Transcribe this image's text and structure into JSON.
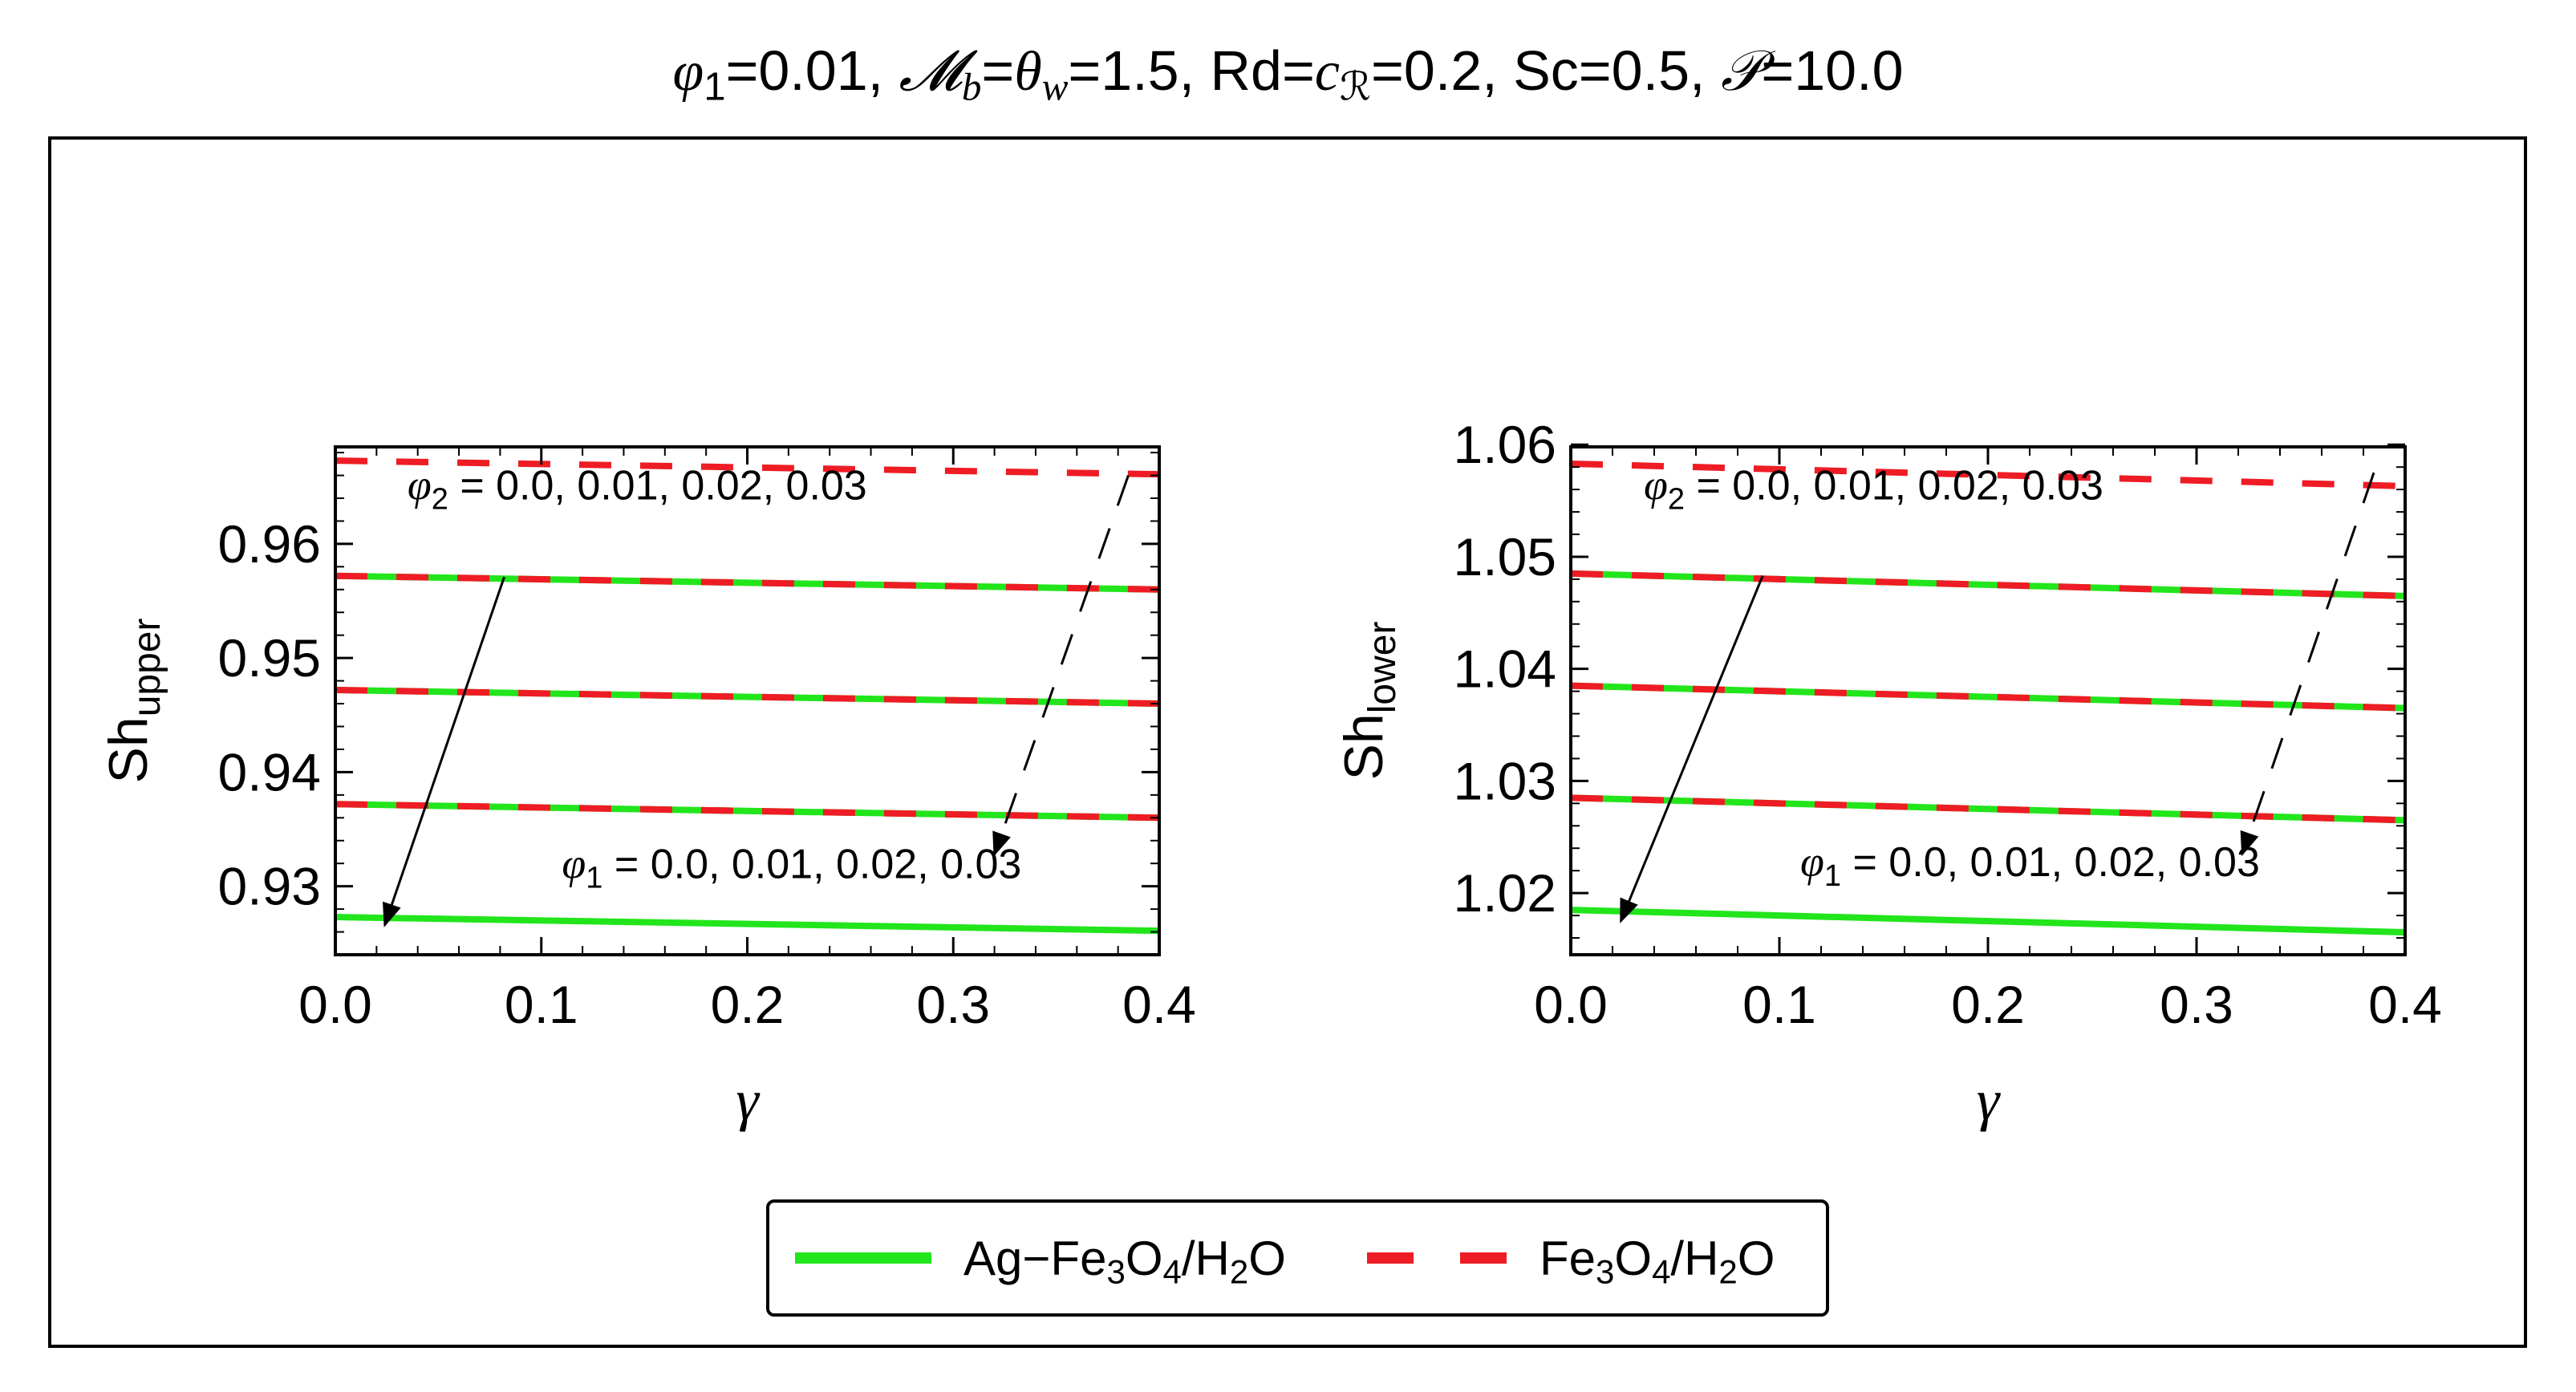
{
  "chart_data": [
    {
      "type": "line",
      "title": "",
      "xlabel": "γ",
      "ylabel_base": "Sh",
      "ylabel_sub": "upper",
      "xlim": [
        0.0,
        0.4
      ],
      "ylim": [
        0.924,
        0.9685
      ],
      "xticks": [
        "0.0",
        "0.1",
        "0.2",
        "0.3",
        "0.4"
      ],
      "xtick_values": [
        0.0,
        0.1,
        0.2,
        0.3,
        0.4
      ],
      "yticks": [
        "0.93",
        "0.94",
        "0.95",
        "0.96"
      ],
      "ytick_values": [
        0.93,
        0.94,
        0.95,
        0.96
      ],
      "grid": false,
      "x": [
        0.0,
        0.4
      ],
      "series": [
        {
          "name": "Fe3O4/H2O",
          "style": "dashed",
          "color": "#ee1c24",
          "group": "phi2=0.0",
          "values": [
            0.9673,
            0.9661
          ]
        },
        {
          "name": "Ag-Fe3O4/H2O",
          "style": "solid",
          "color": "#22e51c",
          "group": "phi2=0.01",
          "values": [
            0.9572,
            0.956
          ]
        },
        {
          "name": "Fe3O4/H2O",
          "style": "dashed",
          "color": "#ee1c24",
          "group": "phi2=0.01",
          "values": [
            0.9572,
            0.956
          ]
        },
        {
          "name": "Ag-Fe3O4/H2O",
          "style": "solid",
          "color": "#22e51c",
          "group": "phi2=0.02",
          "values": [
            0.9472,
            0.946
          ]
        },
        {
          "name": "Fe3O4/H2O",
          "style": "dashed",
          "color": "#ee1c24",
          "group": "phi2=0.02",
          "values": [
            0.9472,
            0.946
          ]
        },
        {
          "name": "Ag-Fe3O4/H2O",
          "style": "solid",
          "color": "#22e51c",
          "group": "phi2=0.03",
          "values": [
            0.9372,
            0.936
          ]
        },
        {
          "name": "Fe3O4/H2O",
          "style": "dashed",
          "color": "#ee1c24",
          "group": "phi2=0.03",
          "values": [
            0.9372,
            0.936
          ]
        },
        {
          "name": "Ag-Fe3O4/H2O",
          "style": "solid",
          "color": "#22e51c",
          "group": "phi2=0.04",
          "values": [
            0.9273,
            0.9261
          ]
        }
      ],
      "annotations": [
        {
          "prefix": "φ",
          "sub": "2",
          "text": " = 0.0, 0.01, 0.02, 0.03",
          "x": 0.035,
          "y": 0.9639
        },
        {
          "prefix": "φ",
          "sub": "1",
          "text": " = 0.0, 0.01, 0.02, 0.03",
          "x": 0.11,
          "y": 0.9307
        }
      ],
      "arrows": [
        {
          "style": "solid",
          "from": [
            0.082,
            0.9571
          ],
          "to": [
            0.024,
            0.9266
          ]
        },
        {
          "style": "dashed",
          "from": [
            0.385,
            0.966
          ],
          "to": [
            0.32,
            0.9328
          ]
        }
      ]
    },
    {
      "type": "line",
      "title": "",
      "xlabel": "γ",
      "ylabel_base": "Sh",
      "ylabel_sub": "lower",
      "xlim": [
        0.0,
        0.4
      ],
      "ylim": [
        1.0145,
        1.0598
      ],
      "xticks": [
        "0.0",
        "0.1",
        "0.2",
        "0.3",
        "0.4"
      ],
      "xtick_values": [
        0.0,
        0.1,
        0.2,
        0.3,
        0.4
      ],
      "yticks": [
        "1.02",
        "1.03",
        "1.04",
        "1.05",
        "1.06"
      ],
      "ytick_values": [
        1.02,
        1.03,
        1.04,
        1.05,
        1.06
      ],
      "grid": false,
      "x": [
        0.0,
        0.4
      ],
      "series": [
        {
          "name": "Fe3O4/H2O",
          "style": "dashed",
          "color": "#ee1c24",
          "group": "phi2=0.0",
          "values": [
            1.0583,
            1.0563
          ]
        },
        {
          "name": "Ag-Fe3O4/H2O",
          "style": "solid",
          "color": "#22e51c",
          "group": "phi2=0.01",
          "values": [
            1.0485,
            1.0465
          ]
        },
        {
          "name": "Fe3O4/H2O",
          "style": "dashed",
          "color": "#ee1c24",
          "group": "phi2=0.01",
          "values": [
            1.0485,
            1.0465
          ]
        },
        {
          "name": "Ag-Fe3O4/H2O",
          "style": "solid",
          "color": "#22e51c",
          "group": "phi2=0.02",
          "values": [
            1.0385,
            1.0365
          ]
        },
        {
          "name": "Fe3O4/H2O",
          "style": "dashed",
          "color": "#ee1c24",
          "group": "phi2=0.02",
          "values": [
            1.0385,
            1.0365
          ]
        },
        {
          "name": "Ag-Fe3O4/H2O",
          "style": "solid",
          "color": "#22e51c",
          "group": "phi2=0.03",
          "values": [
            1.0285,
            1.0265
          ]
        },
        {
          "name": "Fe3O4/H2O",
          "style": "dashed",
          "color": "#ee1c24",
          "group": "phi2=0.03",
          "values": [
            1.0285,
            1.0265
          ]
        },
        {
          "name": "Ag-Fe3O4/H2O",
          "style": "solid",
          "color": "#22e51c",
          "group": "phi2=0.04",
          "values": [
            1.0185,
            1.0165
          ]
        }
      ],
      "annotations": [
        {
          "prefix": "φ",
          "sub": "2",
          "text": " = 0.0, 0.01, 0.02, 0.03",
          "x": 0.035,
          "y": 1.0551
        },
        {
          "prefix": "φ",
          "sub": "1",
          "text": " = 0.0, 0.01, 0.02, 0.03",
          "x": 0.11,
          "y": 1.0215
        }
      ],
      "arrows": [
        {
          "style": "solid",
          "from": [
            0.092,
            1.0483
          ],
          "to": [
            0.024,
            1.0175
          ]
        },
        {
          "style": "dashed",
          "from": [
            0.385,
            1.0575
          ],
          "to": [
            0.322,
            1.0235
          ]
        }
      ]
    }
  ],
  "figure_title": {
    "phi": "φ",
    "phi_sub": "1",
    "part1": "=0.01, ",
    "m": "𝓜",
    "m_sub": "b",
    "eq1": "=",
    "theta": "θ",
    "theta_sub": "w",
    "part2": "=1.5, Rd=",
    "c": "c",
    "c_sub": "ℛ",
    "part3": "=0.2, Sc=0.5, ",
    "p": "𝒫",
    "part4": "=10.0"
  },
  "legend": {
    "items": [
      {
        "label_parts": [
          "Ag−Fe",
          "3",
          "O",
          "4",
          "/H",
          "2",
          "O"
        ],
        "color": "#22e51c",
        "style": "solid"
      },
      {
        "label_parts": [
          "Fe",
          "3",
          "O",
          "4",
          "/H",
          "2",
          "O"
        ],
        "color": "#ee1c24",
        "style": "dashed"
      }
    ]
  }
}
